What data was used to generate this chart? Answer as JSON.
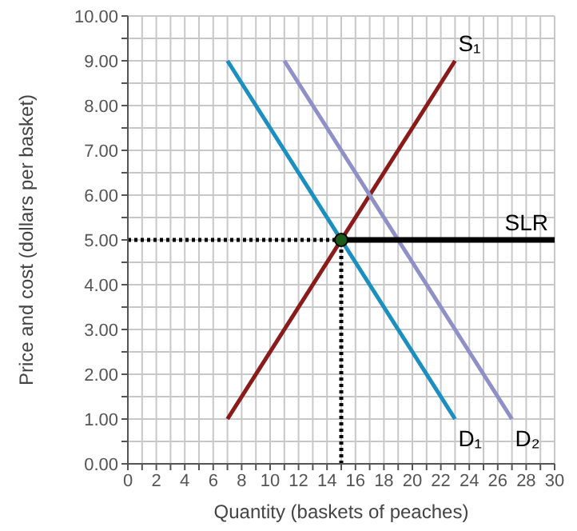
{
  "chart_data": {
    "type": "line",
    "xlabel": "Quantity (baskets of peaches)",
    "ylabel": "Price and cost (dollars per basket)",
    "xlim": [
      0,
      30
    ],
    "ylim": [
      0,
      10
    ],
    "xticks": [
      0,
      {
        "value": 1,
        "label": null
      },
      2,
      {
        "value": 3,
        "label": null
      },
      4,
      {
        "value": 5,
        "label": null
      },
      6,
      {
        "value": 7,
        "label": null
      },
      8,
      {
        "value": 9,
        "label": null
      },
      10,
      {
        "value": 11,
        "label": null
      },
      12,
      {
        "value": 13,
        "label": null
      },
      14,
      {
        "value": 15,
        "label": null
      },
      16,
      {
        "value": 17,
        "label": null
      },
      18,
      {
        "value": 19,
        "label": null
      },
      20,
      {
        "value": 21,
        "label": null
      },
      22,
      {
        "value": 23,
        "label": null
      },
      24,
      {
        "value": 25,
        "label": null
      },
      26,
      {
        "value": 27,
        "label": null
      },
      28,
      {
        "value": 29,
        "label": null
      },
      30
    ],
    "yticks": [
      {
        "value": 0,
        "label": "0.00"
      },
      {
        "value": 0.5,
        "label": null
      },
      {
        "value": 1,
        "label": "1.00"
      },
      {
        "value": 1.5,
        "label": null
      },
      {
        "value": 2,
        "label": "2.00"
      },
      {
        "value": 2.5,
        "label": null
      },
      {
        "value": 3,
        "label": "3.00"
      },
      {
        "value": 3.5,
        "label": null
      },
      {
        "value": 4,
        "label": "4.00"
      },
      {
        "value": 4.5,
        "label": null
      },
      {
        "value": 5,
        "label": "5.00"
      },
      {
        "value": 5.5,
        "label": null
      },
      {
        "value": 6,
        "label": "6.00"
      },
      {
        "value": 6.5,
        "label": null
      },
      {
        "value": 7,
        "label": "7.00"
      },
      {
        "value": 7.5,
        "label": null
      },
      {
        "value": 8,
        "label": "8.00"
      },
      {
        "value": 8.5,
        "label": null
      },
      {
        "value": 9,
        "label": "9.00"
      },
      {
        "value": 9.5,
        "label": null
      },
      {
        "value": 10,
        "label": "10.00"
      }
    ],
    "grid": true,
    "series": [
      {
        "line_style": "dotted",
        "color": "#000000",
        "x": [
          0,
          15
        ],
        "values": [
          5,
          5
        ]
      },
      {
        "line_style": "dotted",
        "color": "#000000",
        "x": [
          15,
          15
        ],
        "values": [
          0,
          5
        ]
      },
      {
        "name": "S₁",
        "line_style": "solid",
        "color": "#8b1a1a",
        "x": [
          7,
          23
        ],
        "values": [
          1,
          9
        ]
      },
      {
        "name": "D₁",
        "line_style": "solid",
        "color": "#1a8fc0",
        "x": [
          7,
          23
        ],
        "values": [
          9,
          1
        ]
      },
      {
        "name": "D₂",
        "line_style": "solid",
        "color": "#9090c8",
        "x": [
          11,
          27
        ],
        "values": [
          9,
          1
        ]
      },
      {
        "name": "SLR",
        "line_style": "solid",
        "color": "#000000",
        "x": [
          15,
          30
        ],
        "values": [
          5,
          5
        ]
      },
      {
        "type": "scatter",
        "marker": "circle",
        "color": "#1a5c1a",
        "x": [
          15
        ],
        "values": [
          5
        ]
      }
    ]
  }
}
